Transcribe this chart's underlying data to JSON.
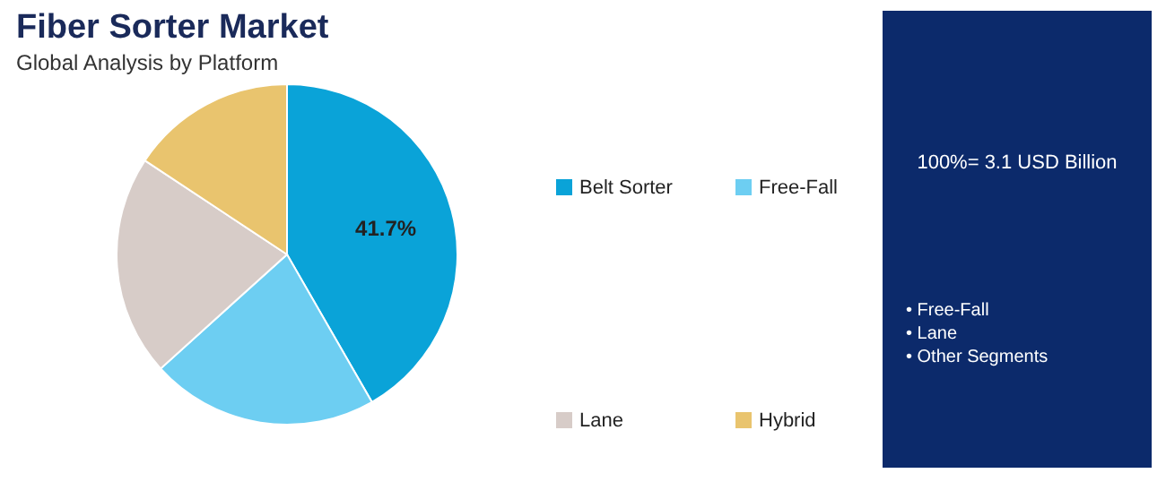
{
  "chart_data": {
    "type": "pie",
    "title": "Fiber Sorter Market",
    "subtitle": "Global Analysis by Platform",
    "categories": [
      "Belt Sorter",
      "Free-Fall",
      "Lane",
      "Hybrid"
    ],
    "values": [
      41.7,
      21.6,
      21.0,
      15.7
    ],
    "colors": [
      "#0aa3d8",
      "#6dcef2",
      "#d7ccc8",
      "#e9c46e"
    ],
    "value_labels": [
      "41.7%",
      null,
      null,
      null
    ],
    "legend": "right",
    "annotations": [
      "100%= 3.1 USD Billion",
      "• Free-Fall",
      "• Lane",
      "• Other Segments"
    ]
  }
}
